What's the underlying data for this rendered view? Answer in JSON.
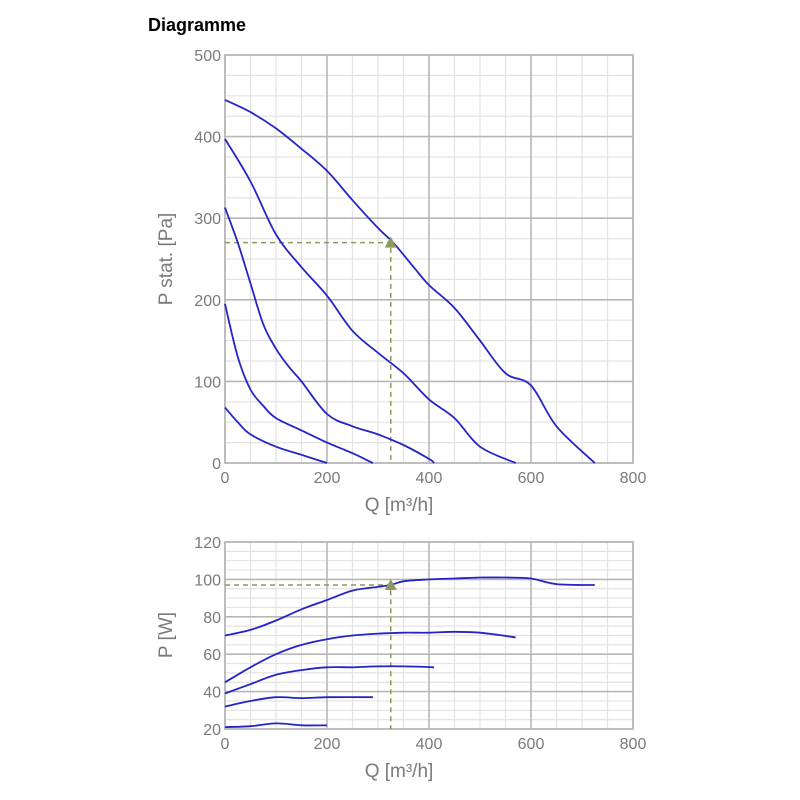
{
  "header": {
    "title": "Diagramme"
  },
  "colors": {
    "curve": "#2424c8",
    "grid_major": "#b7b7b7",
    "grid_minor": "#e3e3e3",
    "operating_point": "#8c9a5a"
  },
  "chart_data": [
    {
      "type": "line",
      "xlabel": "Q [m³/h]",
      "ylabel": "P stat. [Pa]",
      "xlim": [
        0,
        800
      ],
      "ylim": [
        0,
        500
      ],
      "xticks": [
        0,
        200,
        400,
        600,
        800
      ],
      "yticks": [
        0,
        100,
        200,
        300,
        400,
        500
      ],
      "grid": true,
      "series": [
        {
          "values": [
            [
              0,
              445
            ],
            [
              50,
              430
            ],
            [
              100,
              410
            ],
            [
              150,
              385
            ],
            [
              200,
              358
            ],
            [
              250,
              322
            ],
            [
              300,
              288
            ],
            [
              330,
              270
            ],
            [
              370,
              240
            ],
            [
              400,
              218
            ],
            [
              450,
              190
            ],
            [
              500,
              150
            ],
            [
              550,
              110
            ],
            [
              600,
              95
            ],
            [
              650,
              45
            ],
            [
              725,
              0
            ]
          ]
        },
        {
          "values": [
            [
              0,
              397
            ],
            [
              50,
              345
            ],
            [
              100,
              280
            ],
            [
              150,
              240
            ],
            [
              200,
              205
            ],
            [
              250,
              162
            ],
            [
              300,
              135
            ],
            [
              350,
              110
            ],
            [
              400,
              78
            ],
            [
              450,
              55
            ],
            [
              500,
              20
            ],
            [
              570,
              0
            ]
          ]
        },
        {
          "values": [
            [
              0,
              313
            ],
            [
              25,
              270
            ],
            [
              50,
              220
            ],
            [
              75,
              170
            ],
            [
              100,
              140
            ],
            [
              125,
              118
            ],
            [
              150,
              100
            ],
            [
              200,
              60
            ],
            [
              250,
              45
            ],
            [
              300,
              35
            ],
            [
              350,
              22
            ],
            [
              400,
              5
            ],
            [
              410,
              0
            ]
          ]
        },
        {
          "values": [
            [
              0,
              195
            ],
            [
              25,
              130
            ],
            [
              50,
              90
            ],
            [
              75,
              70
            ],
            [
              100,
              55
            ],
            [
              150,
              40
            ],
            [
              200,
              25
            ],
            [
              250,
              12
            ],
            [
              290,
              0
            ]
          ]
        },
        {
          "values": [
            [
              0,
              68
            ],
            [
              25,
              50
            ],
            [
              50,
              35
            ],
            [
              100,
              20
            ],
            [
              150,
              10
            ],
            [
              200,
              0
            ]
          ]
        }
      ],
      "operating_point": {
        "x": 325,
        "y": 270
      }
    },
    {
      "type": "line",
      "xlabel": "Q [m³/h]",
      "ylabel": "P [W]",
      "xlim": [
        0,
        800
      ],
      "ylim": [
        20,
        120
      ],
      "xticks": [
        0,
        200,
        400,
        600,
        800
      ],
      "yticks": [
        20,
        40,
        60,
        80,
        100,
        120
      ],
      "grid": true,
      "series": [
        {
          "values": [
            [
              0,
              70
            ],
            [
              50,
              73
            ],
            [
              100,
              78
            ],
            [
              150,
              84
            ],
            [
              200,
              89
            ],
            [
              250,
              94
            ],
            [
              300,
              96
            ],
            [
              325,
              97
            ],
            [
              350,
              99
            ],
            [
              400,
              100
            ],
            [
              450,
              100.5
            ],
            [
              500,
              101
            ],
            [
              550,
              101
            ],
            [
              600,
              100.5
            ],
            [
              650,
              97.5
            ],
            [
              725,
              97
            ]
          ]
        },
        {
          "values": [
            [
              0,
              45
            ],
            [
              50,
              53
            ],
            [
              100,
              60
            ],
            [
              150,
              65
            ],
            [
              200,
              68
            ],
            [
              250,
              70
            ],
            [
              300,
              71
            ],
            [
              350,
              71.5
            ],
            [
              400,
              71.5
            ],
            [
              450,
              72
            ],
            [
              500,
              71.5
            ],
            [
              570,
              69
            ]
          ]
        },
        {
          "values": [
            [
              0,
              39
            ],
            [
              50,
              44
            ],
            [
              100,
              49
            ],
            [
              150,
              51.5
            ],
            [
              200,
              53
            ],
            [
              250,
              53
            ],
            [
              300,
              53.5
            ],
            [
              350,
              53.5
            ],
            [
              410,
              53
            ]
          ]
        },
        {
          "values": [
            [
              0,
              32
            ],
            [
              50,
              35
            ],
            [
              100,
              37
            ],
            [
              150,
              36.5
            ],
            [
              200,
              37
            ],
            [
              290,
              37
            ]
          ]
        },
        {
          "values": [
            [
              0,
              21
            ],
            [
              50,
              21.5
            ],
            [
              100,
              23
            ],
            [
              150,
              22
            ],
            [
              200,
              22
            ]
          ]
        }
      ],
      "operating_point": {
        "x": 325,
        "y": 97
      }
    }
  ]
}
